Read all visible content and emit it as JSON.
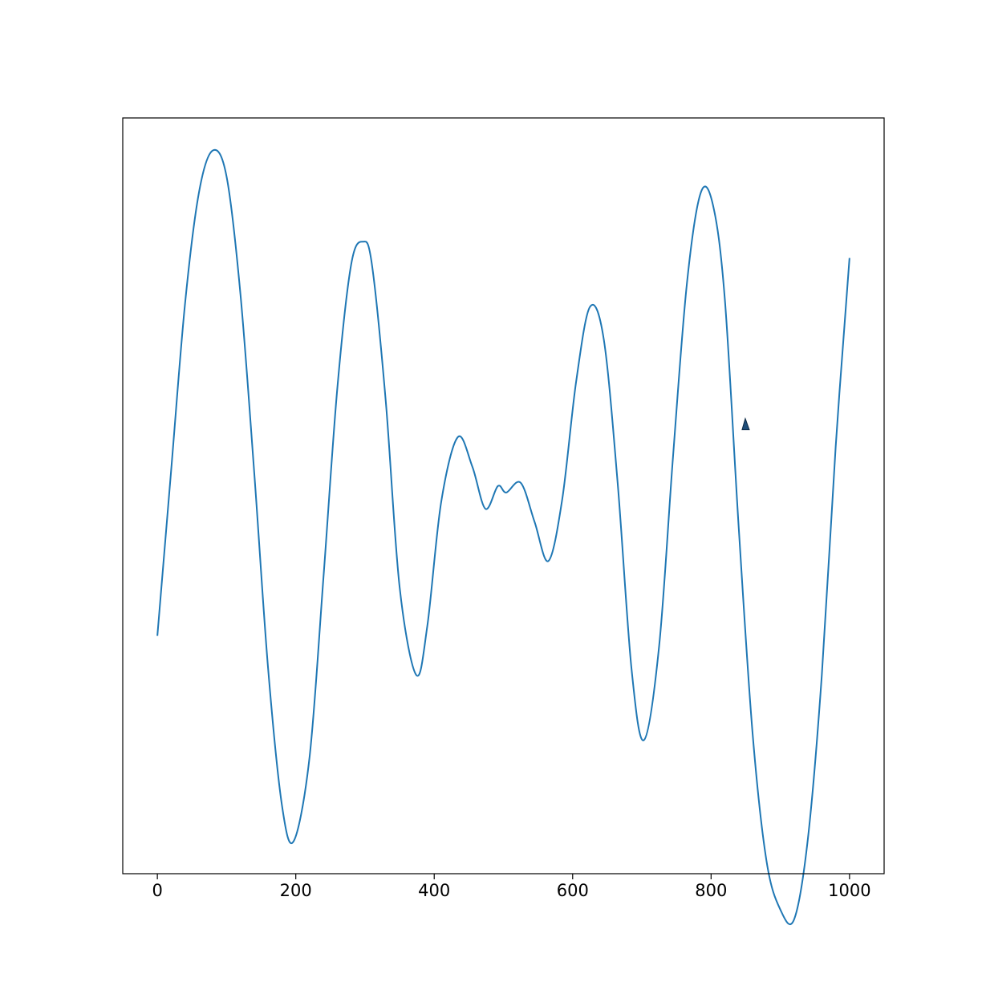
{
  "chart_data": {
    "type": "line",
    "title": "",
    "xlabel": "",
    "ylabel": "",
    "xlim": [
      -50,
      1050
    ],
    "ylim": [
      -1.16,
      1.16
    ],
    "x_ticks": [
      0,
      200,
      400,
      600,
      800,
      1000
    ],
    "x_tick_labels": [
      "0",
      "200",
      "400",
      "600",
      "800",
      "1000"
    ],
    "y_ticks_visible": false,
    "grid": false,
    "legend": false,
    "line_color": "#1f77b4",
    "marker_color": "#1f4e79",
    "series": [
      {
        "x": [
          0,
          20,
          40,
          60,
          80,
          100,
          120,
          140,
          160,
          180,
          197,
          220,
          240,
          260,
          280,
          297,
          310,
          330,
          350,
          374,
          390,
          410,
          434,
          455,
          474,
          492,
          504,
          525,
          545,
          565,
          585,
          605,
          625,
          645,
          665,
          685,
          703,
          725,
          745,
          765,
          785,
          803,
          820,
          840,
          860,
          880,
          900,
          920,
          940,
          960,
          980,
          1000
        ],
        "y": [
          -0.43,
          0.08,
          0.59,
          0.93,
          1.06,
          0.98,
          0.62,
          0.07,
          -0.53,
          -0.95,
          -1.06,
          -0.8,
          -0.25,
          0.33,
          0.71,
          0.78,
          0.71,
          0.29,
          -0.28,
          -0.55,
          -0.4,
          -0.02,
          0.18,
          0.09,
          -0.04,
          0.03,
          0.01,
          0.04,
          -0.08,
          -0.2,
          -0.01,
          0.35,
          0.58,
          0.48,
          0.04,
          -0.53,
          -0.75,
          -0.46,
          0.12,
          0.65,
          0.93,
          0.89,
          0.6,
          -0.1,
          -0.73,
          -1.12,
          -1.27,
          -1.3,
          -1.05,
          -0.55,
          0.15,
          0.73
        ]
      }
    ],
    "annotations": [
      {
        "type": "arrow-marker",
        "x": 850,
        "y": 0.22
      }
    ]
  }
}
